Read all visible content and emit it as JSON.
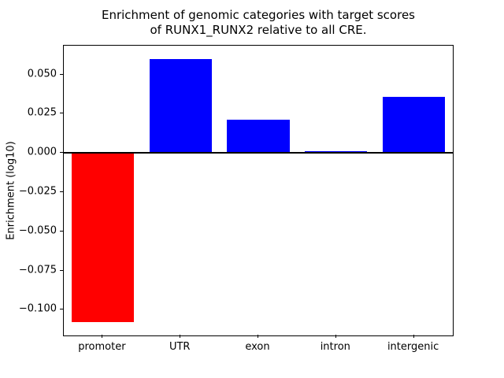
{
  "figure": {
    "title_line1": "Enrichment of genomic categories with target scores",
    "title_line2": "of RUNX1_RUNX2 relative to all CRE."
  },
  "chart_data": {
    "type": "bar",
    "title": "Enrichment of genomic categories with target scores of RUNX1_RUNX2 relative to all CRE.",
    "xlabel": "",
    "ylabel": "Enrichment (log10)",
    "categories": [
      "promoter",
      "UTR",
      "exon",
      "intron",
      "intergenic"
    ],
    "values": [
      -0.108,
      0.06,
      0.021,
      0.001,
      0.036
    ],
    "bar_colors": [
      "#ff0000",
      "#0000ff",
      "#0000ff",
      "#0000ff",
      "#0000ff"
    ],
    "bar_width_fraction": 0.8,
    "ylim": [
      -0.1164,
      0.0684
    ],
    "yticks": [
      {
        "value": 0.05,
        "label": "0.050"
      },
      {
        "value": 0.025,
        "label": "0.025"
      },
      {
        "value": 0.0,
        "label": "0.000"
      },
      {
        "value": -0.025,
        "label": "−0.025"
      },
      {
        "value": -0.05,
        "label": "−0.050"
      },
      {
        "value": -0.075,
        "label": "−0.075"
      },
      {
        "value": -0.1,
        "label": "−0.100"
      }
    ],
    "zero_line": true,
    "grid": false,
    "legend": false,
    "axis_color": "#000000",
    "background_color": "#ffffff"
  }
}
